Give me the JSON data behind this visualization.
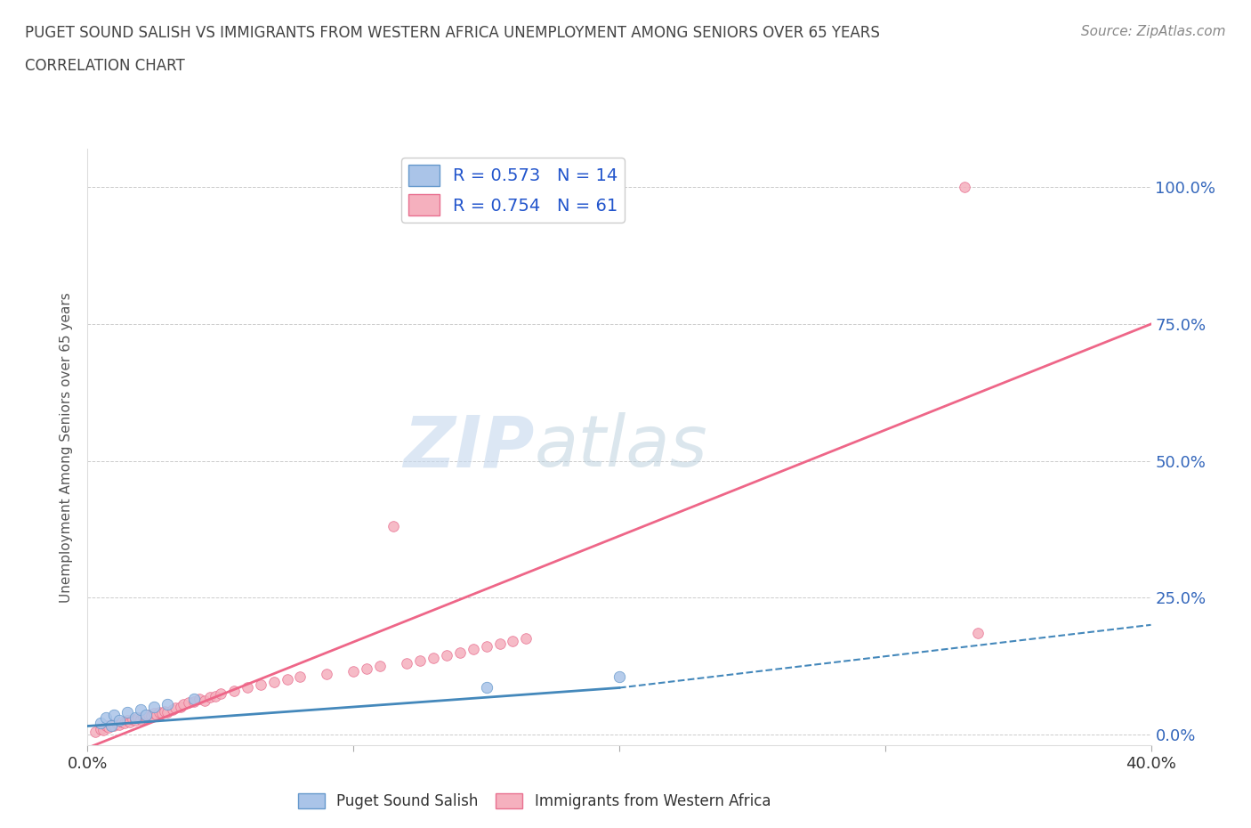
{
  "title_line1": "PUGET SOUND SALISH VS IMMIGRANTS FROM WESTERN AFRICA UNEMPLOYMENT AMONG SENIORS OVER 65 YEARS",
  "title_line2": "CORRELATION CHART",
  "source_text": "Source: ZipAtlas.com",
  "ylabel": "Unemployment Among Seniors over 65 years",
  "xlim": [
    0.0,
    0.4
  ],
  "ylim": [
    -0.02,
    1.07
  ],
  "ytick_labels": [
    "0.0%",
    "25.0%",
    "50.0%",
    "75.0%",
    "100.0%"
  ],
  "ytick_values": [
    0.0,
    0.25,
    0.5,
    0.75,
    1.0
  ],
  "grid_color": "#cccccc",
  "watermark_zip": "ZIP",
  "watermark_atlas": "atlas",
  "blue_color": "#aac4e8",
  "pink_color": "#f5b0be",
  "blue_edge_color": "#6699cc",
  "pink_edge_color": "#e87090",
  "blue_line_color": "#4488bb",
  "pink_line_color": "#ee6688",
  "label1": "Puget Sound Salish",
  "label2": "Immigrants from Western Africa",
  "r1": 0.573,
  "n1": 14,
  "r2": 0.754,
  "n2": 61,
  "blue_scatter_x": [
    0.005,
    0.007,
    0.009,
    0.01,
    0.012,
    0.015,
    0.018,
    0.02,
    0.022,
    0.025,
    0.03,
    0.04,
    0.15,
    0.2
  ],
  "blue_scatter_y": [
    0.02,
    0.03,
    0.015,
    0.035,
    0.025,
    0.04,
    0.03,
    0.045,
    0.035,
    0.05,
    0.055,
    0.065,
    0.085,
    0.105
  ],
  "pink_scatter_x": [
    0.003,
    0.005,
    0.006,
    0.007,
    0.008,
    0.009,
    0.01,
    0.011,
    0.012,
    0.013,
    0.014,
    0.015,
    0.016,
    0.017,
    0.018,
    0.019,
    0.02,
    0.021,
    0.022,
    0.023,
    0.024,
    0.025,
    0.026,
    0.027,
    0.028,
    0.029,
    0.03,
    0.032,
    0.033,
    0.035,
    0.036,
    0.038,
    0.04,
    0.042,
    0.044,
    0.046,
    0.048,
    0.05,
    0.055,
    0.06,
    0.065,
    0.07,
    0.075,
    0.08,
    0.09,
    0.1,
    0.105,
    0.11,
    0.115,
    0.12,
    0.125,
    0.13,
    0.135,
    0.14,
    0.145,
    0.15,
    0.155,
    0.16,
    0.165,
    0.33,
    0.335
  ],
  "pink_scatter_y": [
    0.005,
    0.01,
    0.008,
    0.015,
    0.012,
    0.018,
    0.015,
    0.02,
    0.018,
    0.022,
    0.02,
    0.025,
    0.022,
    0.028,
    0.025,
    0.03,
    0.028,
    0.032,
    0.03,
    0.035,
    0.033,
    0.038,
    0.035,
    0.04,
    0.038,
    0.042,
    0.04,
    0.045,
    0.048,
    0.05,
    0.055,
    0.058,
    0.06,
    0.065,
    0.062,
    0.068,
    0.07,
    0.075,
    0.08,
    0.085,
    0.09,
    0.095,
    0.1,
    0.105,
    0.11,
    0.115,
    0.12,
    0.125,
    0.38,
    0.13,
    0.135,
    0.14,
    0.145,
    0.15,
    0.155,
    0.16,
    0.165,
    0.17,
    0.175,
    1.0,
    0.185
  ],
  "pink_line_x0": 0.0,
  "pink_line_y0": -0.025,
  "pink_line_x1": 0.4,
  "pink_line_y1": 0.75,
  "blue_line_solid_x0": 0.0,
  "blue_line_solid_y0": 0.015,
  "blue_line_solid_x1": 0.2,
  "blue_line_solid_y1": 0.085,
  "blue_line_dash_x0": 0.2,
  "blue_line_dash_y0": 0.085,
  "blue_line_dash_x1": 0.4,
  "blue_line_dash_y1": 0.2
}
